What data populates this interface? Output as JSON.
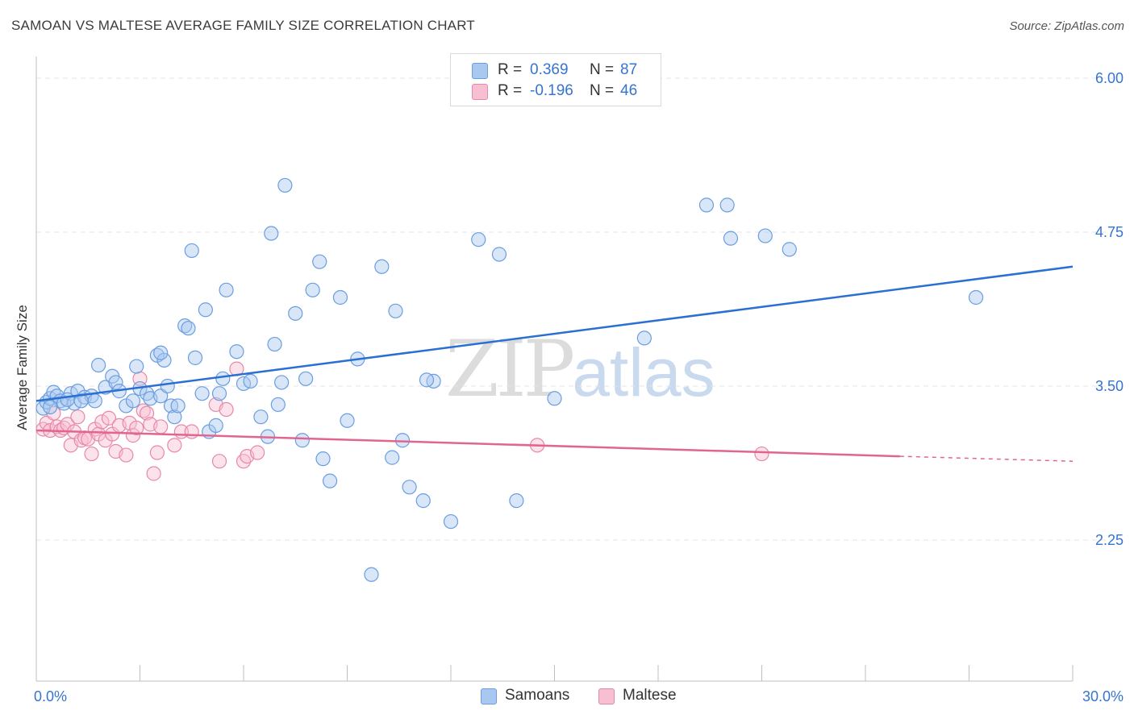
{
  "header": {
    "title": "SAMOAN VS MALTESE AVERAGE FAMILY SIZE CORRELATION CHART",
    "source": "Source: ZipAtlas.com"
  },
  "watermark": {
    "zip": "ZIP",
    "atlas": "atlas"
  },
  "colors": {
    "samoans_fill": "#a9c8f0",
    "samoans_stroke": "#6a9ee0",
    "samoans_line": "#2a6fd1",
    "maltese_fill": "#f8bfd2",
    "maltese_stroke": "#e888a9",
    "maltese_line": "#e0668f",
    "axis_label": "#3674d0",
    "grid": "#e4e4e4"
  },
  "legend": {
    "rows": [
      {
        "r_label": "R =",
        "r_value": "0.369",
        "n_label": "N =",
        "n_value": "87"
      },
      {
        "r_label": "R =",
        "r_value": "-0.196",
        "n_label": "N =",
        "n_value": "46"
      }
    ]
  },
  "bottom_legend": {
    "samoans": "Samoans",
    "maltese": "Maltese"
  },
  "chart_data": {
    "type": "scatter",
    "title": "SAMOAN VS MALTESE AVERAGE FAMILY SIZE CORRELATION CHART",
    "xlabel": "",
    "ylabel": "Average Family Size",
    "xlim": [
      0,
      30
    ],
    "ylim": [
      1.25,
      6.2
    ],
    "x_tick_labels": [
      "0.0%",
      "30.0%"
    ],
    "y_ticks": [
      2.25,
      3.5,
      4.75,
      6.0
    ],
    "y_tick_labels": [
      "2.25",
      "3.50",
      "4.75",
      "6.00"
    ],
    "grid": true,
    "series": [
      {
        "name": "Samoans",
        "R": 0.369,
        "N": 87,
        "trend": {
          "x0": 0,
          "y0": 3.38,
          "x1": 30,
          "y1": 4.47
        },
        "points": [
          [
            0.2,
            3.32
          ],
          [
            0.3,
            3.37
          ],
          [
            0.4,
            3.4
          ],
          [
            0.5,
            3.45
          ],
          [
            0.6,
            3.42
          ],
          [
            0.7,
            3.38
          ],
          [
            0.8,
            3.36
          ],
          [
            1.0,
            3.44
          ],
          [
            1.1,
            3.36
          ],
          [
            1.2,
            3.46
          ],
          [
            1.4,
            3.41
          ],
          [
            1.6,
            3.42
          ],
          [
            1.7,
            3.38
          ],
          [
            1.8,
            3.67
          ],
          [
            2.0,
            3.49
          ],
          [
            2.2,
            3.58
          ],
          [
            2.3,
            3.53
          ],
          [
            2.4,
            3.46
          ],
          [
            2.6,
            3.34
          ],
          [
            2.8,
            3.38
          ],
          [
            2.9,
            3.66
          ],
          [
            3.0,
            3.48
          ],
          [
            3.2,
            3.44
          ],
          [
            3.3,
            3.4
          ],
          [
            3.5,
            3.75
          ],
          [
            3.7,
            3.71
          ],
          [
            3.6,
            3.42
          ],
          [
            3.8,
            3.5
          ],
          [
            3.9,
            3.34
          ],
          [
            4.0,
            3.25
          ],
          [
            4.1,
            3.34
          ],
          [
            4.3,
            3.99
          ],
          [
            4.4,
            3.97
          ],
          [
            4.5,
            4.6
          ],
          [
            4.6,
            3.73
          ],
          [
            4.8,
            3.44
          ],
          [
            4.9,
            4.12
          ],
          [
            5.0,
            3.13
          ],
          [
            5.2,
            3.18
          ],
          [
            5.3,
            3.44
          ],
          [
            5.4,
            3.56
          ],
          [
            5.5,
            4.28
          ],
          [
            5.8,
            3.78
          ],
          [
            6.0,
            3.52
          ],
          [
            6.2,
            3.54
          ],
          [
            6.5,
            3.25
          ],
          [
            6.7,
            3.09
          ],
          [
            6.8,
            4.74
          ],
          [
            6.9,
            3.84
          ],
          [
            7.0,
            3.35
          ],
          [
            7.1,
            3.53
          ],
          [
            7.2,
            5.13
          ],
          [
            7.5,
            4.09
          ],
          [
            7.7,
            3.06
          ],
          [
            7.8,
            3.56
          ],
          [
            8.0,
            4.28
          ],
          [
            8.2,
            4.51
          ],
          [
            8.3,
            2.91
          ],
          [
            8.5,
            2.73
          ],
          [
            8.8,
            4.22
          ],
          [
            9.0,
            3.22
          ],
          [
            9.3,
            3.72
          ],
          [
            9.7,
            1.97
          ],
          [
            10.0,
            4.47
          ],
          [
            10.3,
            2.92
          ],
          [
            10.4,
            4.11
          ],
          [
            10.6,
            3.06
          ],
          [
            10.8,
            2.68
          ],
          [
            11.2,
            2.57
          ],
          [
            11.5,
            3.54
          ],
          [
            11.3,
            3.55
          ],
          [
            12.0,
            2.4
          ],
          [
            12.8,
            4.69
          ],
          [
            13.4,
            4.57
          ],
          [
            13.9,
            2.57
          ],
          [
            15.0,
            3.4
          ],
          [
            17.6,
            3.89
          ],
          [
            19.4,
            4.97
          ],
          [
            20.0,
            4.97
          ],
          [
            20.1,
            4.7
          ],
          [
            21.1,
            4.72
          ],
          [
            21.8,
            4.61
          ],
          [
            27.2,
            4.22
          ],
          [
            0.4,
            3.33
          ],
          [
            1.3,
            3.38
          ],
          [
            3.6,
            3.77
          ],
          [
            0.9,
            3.39
          ]
        ]
      },
      {
        "name": "Maltese",
        "R": -0.196,
        "N": 46,
        "trend": {
          "x0": 0,
          "y0": 3.14,
          "x1": 25,
          "y1": 2.93
        },
        "trend_dashed": {
          "x0": 25,
          "y0": 2.93,
          "x1": 30,
          "y1": 2.89
        },
        "points": [
          [
            0.2,
            3.15
          ],
          [
            0.3,
            3.2
          ],
          [
            0.4,
            3.14
          ],
          [
            0.5,
            3.28
          ],
          [
            0.6,
            3.17
          ],
          [
            0.7,
            3.14
          ],
          [
            0.8,
            3.16
          ],
          [
            0.9,
            3.19
          ],
          [
            1.0,
            3.02
          ],
          [
            1.1,
            3.13
          ],
          [
            1.2,
            3.25
          ],
          [
            1.3,
            3.06
          ],
          [
            1.4,
            3.08
          ],
          [
            1.5,
            3.07
          ],
          [
            1.6,
            2.95
          ],
          [
            1.7,
            3.15
          ],
          [
            1.8,
            3.11
          ],
          [
            1.9,
            3.21
          ],
          [
            2.0,
            3.06
          ],
          [
            2.1,
            3.24
          ],
          [
            2.2,
            3.11
          ],
          [
            2.3,
            2.97
          ],
          [
            2.4,
            3.18
          ],
          [
            2.6,
            2.94
          ],
          [
            2.7,
            3.2
          ],
          [
            2.8,
            3.1
          ],
          [
            2.9,
            3.16
          ],
          [
            3.0,
            3.56
          ],
          [
            3.1,
            3.3
          ],
          [
            3.2,
            3.28
          ],
          [
            3.3,
            3.19
          ],
          [
            3.4,
            2.79
          ],
          [
            3.5,
            2.96
          ],
          [
            3.6,
            3.17
          ],
          [
            4.0,
            3.02
          ],
          [
            4.2,
            3.13
          ],
          [
            4.5,
            3.13
          ],
          [
            5.2,
            3.35
          ],
          [
            5.3,
            2.89
          ],
          [
            5.5,
            3.31
          ],
          [
            5.8,
            3.64
          ],
          [
            6.0,
            2.89
          ],
          [
            6.1,
            2.93
          ],
          [
            6.4,
            2.96
          ],
          [
            14.5,
            3.02
          ],
          [
            21.0,
            2.95
          ]
        ]
      }
    ]
  }
}
